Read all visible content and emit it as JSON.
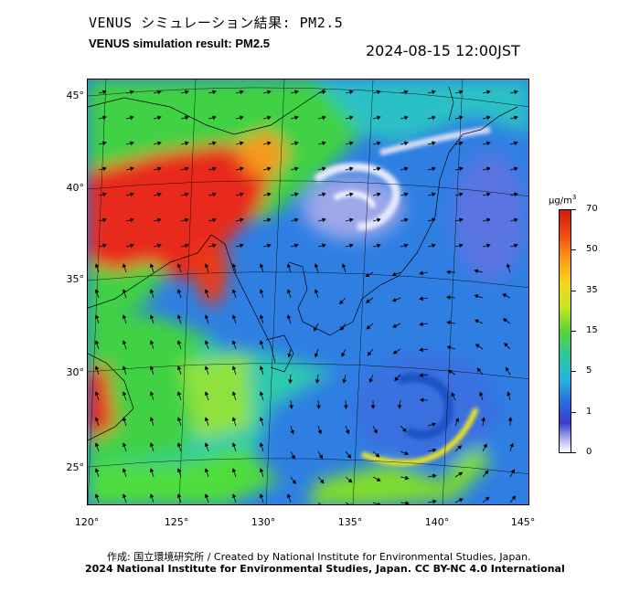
{
  "header": {
    "title_jp": "VENUS シミュレーション結果: PM2.5",
    "title_en": "VENUS simulation result: PM2.5",
    "timestamp": "2024-08-15 12:00JST"
  },
  "map": {
    "latitude_labels": [
      "45°",
      "40°",
      "35°",
      "30°",
      "25°"
    ],
    "longitude_labels": [
      "120°",
      "125°",
      "130°",
      "135°",
      "140°",
      "145°"
    ],
    "colors": {
      "ocean_blue": "#2f7fe3",
      "dust_red": "#e8291a",
      "green": "#3fd144",
      "cyan": "#22c7d8",
      "typhoon_white": "#dfe4f7"
    }
  },
  "colorbar": {
    "unit": "μg/m",
    "unit_sup": "3",
    "ticks": [
      "70",
      "50",
      "35",
      "15",
      "5",
      "1",
      "0"
    ]
  },
  "footer": {
    "credit_line1": "作成: 国立環境研究所 / Created by National Institute for Environmental Studies, Japan.",
    "credit_line2": "2024 National Institute for Environmental Studies, Japan. CC BY-NC 4.0 International"
  }
}
